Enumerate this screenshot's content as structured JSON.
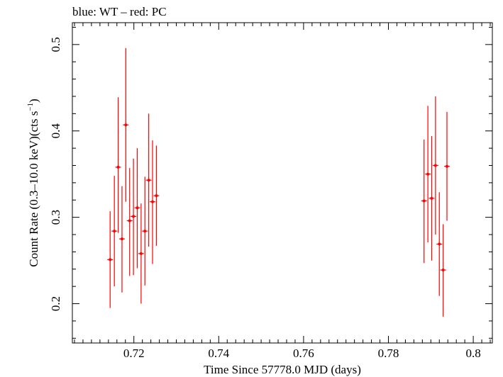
{
  "chart_data": {
    "type": "scatter",
    "title": "blue: WT – red: PC",
    "xlabel": "Time Since 57778.0 MJD (days)",
    "ylabel_main": "Count Rate (0.3–10.0 keV)(cts s",
    "ylabel_sup": "−1",
    "ylabel_close": ")",
    "xlim": [
      0.7055,
      0.8045
    ],
    "ylim": [
      0.1545,
      0.5253
    ],
    "xticks": [
      0.72,
      0.74,
      0.76,
      0.78,
      0.8
    ],
    "xtick_labels": [
      "0.72",
      "0.74",
      "0.76",
      "0.78",
      "0.8"
    ],
    "yticks": [
      0.2,
      0.3,
      0.4,
      0.5
    ],
    "ytick_labels": [
      "0.2",
      "0.3",
      "0.4",
      "0.5"
    ],
    "grid": false,
    "series": [
      {
        "name": "PC",
        "color": "#ff0000",
        "points": [
          {
            "x": 0.7144,
            "y": 0.251,
            "ylo": 0.195,
            "yhi": 0.307
          },
          {
            "x": 0.7154,
            "y": 0.284,
            "ylo": 0.22,
            "yhi": 0.348
          },
          {
            "x": 0.7163,
            "y": 0.358,
            "ylo": 0.282,
            "yhi": 0.439
          },
          {
            "x": 0.7172,
            "y": 0.275,
            "ylo": 0.213,
            "yhi": 0.336
          },
          {
            "x": 0.7181,
            "y": 0.407,
            "ylo": 0.318,
            "yhi": 0.496
          },
          {
            "x": 0.719,
            "y": 0.296,
            "ylo": 0.232,
            "yhi": 0.357
          },
          {
            "x": 0.7199,
            "y": 0.301,
            "ylo": 0.233,
            "yhi": 0.368
          },
          {
            "x": 0.7208,
            "y": 0.311,
            "ylo": 0.241,
            "yhi": 0.38
          },
          {
            "x": 0.7217,
            "y": 0.258,
            "ylo": 0.2,
            "yhi": 0.316
          },
          {
            "x": 0.7226,
            "y": 0.284,
            "ylo": 0.221,
            "yhi": 0.347
          },
          {
            "x": 0.7235,
            "y": 0.343,
            "ylo": 0.266,
            "yhi": 0.42
          },
          {
            "x": 0.7244,
            "y": 0.318,
            "ylo": 0.246,
            "yhi": 0.389
          },
          {
            "x": 0.7253,
            "y": 0.325,
            "ylo": 0.267,
            "yhi": 0.383
          },
          {
            "x": 0.7884,
            "y": 0.319,
            "ylo": 0.247,
            "yhi": 0.39
          },
          {
            "x": 0.7893,
            "y": 0.35,
            "ylo": 0.271,
            "yhi": 0.429
          },
          {
            "x": 0.7902,
            "y": 0.322,
            "ylo": 0.25,
            "yhi": 0.394
          },
          {
            "x": 0.7911,
            "y": 0.36,
            "ylo": 0.28,
            "yhi": 0.44
          },
          {
            "x": 0.792,
            "y": 0.269,
            "ylo": 0.209,
            "yhi": 0.329
          },
          {
            "x": 0.7929,
            "y": 0.239,
            "ylo": 0.185,
            "yhi": 0.292
          },
          {
            "x": 0.7938,
            "y": 0.359,
            "ylo": 0.296,
            "yhi": 0.422
          }
        ]
      }
    ]
  }
}
